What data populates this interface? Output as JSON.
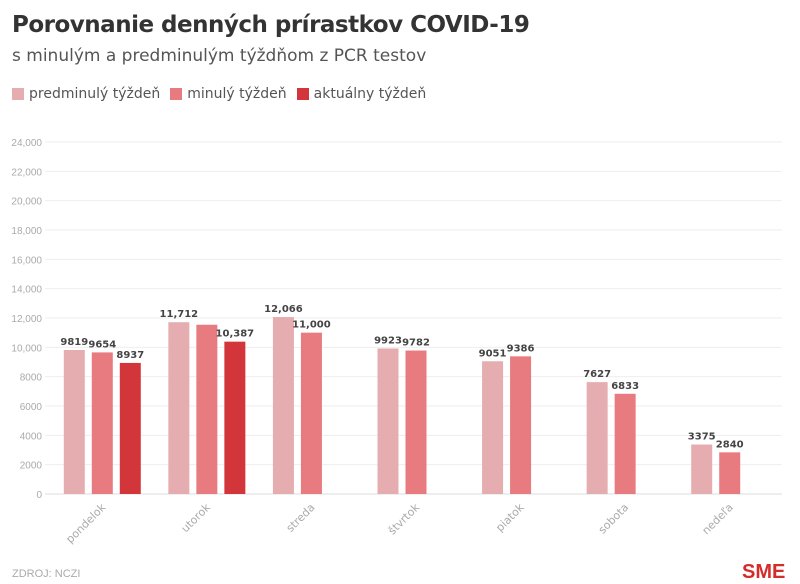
{
  "title": "Porovnanie denných prírastkov COVID-19",
  "subtitle": "s minulým a predminulým týždňom z PCR testov",
  "source": "ZDROJ: NCZI",
  "logo": "SME",
  "chart_data": {
    "type": "bar",
    "categories": [
      "pondelok",
      "utorok",
      "streda",
      "štvrtok",
      "piatok",
      "sobota",
      "nedeľa"
    ],
    "series": [
      {
        "name": "predminulý týždeň",
        "color": "#e5adb0",
        "values": [
          9819,
          11712,
          12066,
          9923,
          9051,
          7627,
          3375
        ],
        "labels": [
          "9819",
          "11,712",
          "12,066",
          "9923",
          "9051",
          "7627",
          "3375"
        ]
      },
      {
        "name": "minulý týždeň",
        "color": "#e77b80",
        "values": [
          9654,
          11540,
          11000,
          9782,
          9386,
          6833,
          2840
        ],
        "labels": [
          "9654",
          null,
          "11,000",
          "9782",
          "9386",
          "6833",
          "2840"
        ]
      },
      {
        "name": "aktuálny týždeň",
        "color": "#d2363b",
        "values": [
          8937,
          10387,
          null,
          null,
          null,
          null,
          null
        ],
        "labels": [
          "8937",
          "10,387",
          null,
          null,
          null,
          null,
          null
        ]
      }
    ],
    "ylim": [
      0,
      24000
    ],
    "yticks": [
      0,
      2000,
      4000,
      6000,
      8000,
      10000,
      12000,
      14000,
      16000,
      18000,
      20000,
      22000,
      24000
    ],
    "ytick_labels": [
      "0",
      "2000",
      "4000",
      "6000",
      "8000",
      "10,000",
      "12,000",
      "14,000",
      "16,000",
      "18,000",
      "20,000",
      "22,000",
      "24,000"
    ],
    "grid": true,
    "legend_position": "top-left"
  }
}
